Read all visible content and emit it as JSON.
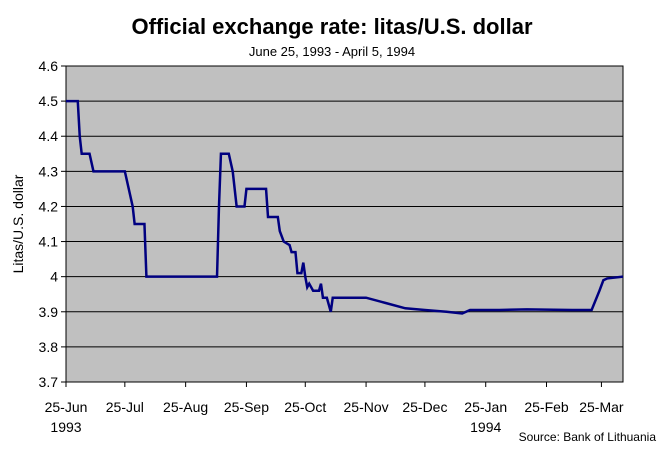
{
  "chart_data": {
    "type": "line",
    "title": "Official exchange rate: litas/U.S. dollar",
    "subtitle": "June 25, 1993 - April 5, 1994",
    "xlabel": "",
    "ylabel": "Litas/U.S. dollar",
    "source": "Source: Bank of Lithuania",
    "ylim": [
      3.7,
      4.6
    ],
    "yticks": [
      3.7,
      3.8,
      3.9,
      4,
      4.1,
      4.2,
      4.3,
      4.4,
      4.5,
      4.6
    ],
    "xlim": [
      "1993-06-25",
      "1994-04-05"
    ],
    "xticks": [
      {
        "date": "1993-06-25",
        "label": "25-Jun",
        "sublabel": "1993"
      },
      {
        "date": "1993-07-25",
        "label": "25-Jul",
        "sublabel": ""
      },
      {
        "date": "1993-08-25",
        "label": "25-Aug",
        "sublabel": ""
      },
      {
        "date": "1993-09-25",
        "label": "25-Sep",
        "sublabel": ""
      },
      {
        "date": "1993-10-25",
        "label": "25-Oct",
        "sublabel": ""
      },
      {
        "date": "1993-11-25",
        "label": "25-Nov",
        "sublabel": ""
      },
      {
        "date": "1993-12-25",
        "label": "25-Dec",
        "sublabel": ""
      },
      {
        "date": "1994-01-25",
        "label": "25-Jan",
        "sublabel": "1994"
      },
      {
        "date": "1994-02-25",
        "label": "25-Feb",
        "sublabel": ""
      },
      {
        "date": "1994-03-25",
        "label": "25-Mar",
        "sublabel": ""
      }
    ],
    "grid": {
      "horizontal": true,
      "vertical": false
    },
    "legend": "none",
    "colors": {
      "line": "#000080",
      "plot_background": "#c0c0c0",
      "page_background": "#ffffff"
    },
    "series": [
      {
        "points": [
          [
            "1993-06-25",
            4.5
          ],
          [
            "1993-07-01",
            4.5
          ],
          [
            "1993-07-02",
            4.4
          ],
          [
            "1993-07-03",
            4.35
          ],
          [
            "1993-07-07",
            4.35
          ],
          [
            "1993-07-09",
            4.3
          ],
          [
            "1993-07-25",
            4.3
          ],
          [
            "1993-07-27",
            4.25
          ],
          [
            "1993-07-29",
            4.2
          ],
          [
            "1993-07-30",
            4.15
          ],
          [
            "1993-08-04",
            4.15
          ],
          [
            "1993-08-05",
            4.0
          ],
          [
            "1993-09-10",
            4.0
          ],
          [
            "1993-09-11",
            4.2
          ],
          [
            "1993-09-12",
            4.35
          ],
          [
            "1993-09-16",
            4.35
          ],
          [
            "1993-09-18",
            4.3
          ],
          [
            "1993-09-20",
            4.2
          ],
          [
            "1993-09-24",
            4.2
          ],
          [
            "1993-09-25",
            4.25
          ],
          [
            "1993-10-05",
            4.25
          ],
          [
            "1993-10-06",
            4.17
          ],
          [
            "1993-10-11",
            4.17
          ],
          [
            "1993-10-12",
            4.13
          ],
          [
            "1993-10-14",
            4.1
          ],
          [
            "1993-10-17",
            4.09
          ],
          [
            "1993-10-18",
            4.07
          ],
          [
            "1993-10-20",
            4.07
          ],
          [
            "1993-10-21",
            4.01
          ],
          [
            "1993-10-23",
            4.01
          ],
          [
            "1993-10-24",
            4.04
          ],
          [
            "1993-10-25",
            4.0
          ],
          [
            "1993-10-26",
            3.97
          ],
          [
            "1993-10-27",
            3.98
          ],
          [
            "1993-10-29",
            3.96
          ],
          [
            "1993-11-01",
            3.96
          ],
          [
            "1993-11-02",
            3.98
          ],
          [
            "1993-11-03",
            3.94
          ],
          [
            "1993-11-05",
            3.94
          ],
          [
            "1993-11-07",
            3.9
          ],
          [
            "1993-11-08",
            3.94
          ],
          [
            "1993-11-25",
            3.94
          ],
          [
            "1993-12-05",
            3.925
          ],
          [
            "1993-12-15",
            3.91
          ],
          [
            "1993-12-25",
            3.905
          ],
          [
            "1994-01-05",
            3.9
          ],
          [
            "1994-01-13",
            3.895
          ],
          [
            "1994-01-17",
            3.905
          ],
          [
            "1994-02-01",
            3.905
          ],
          [
            "1994-02-15",
            3.907
          ],
          [
            "1994-03-10",
            3.905
          ],
          [
            "1994-03-20",
            3.905
          ],
          [
            "1994-03-24",
            3.96
          ],
          [
            "1994-03-26",
            3.99
          ],
          [
            "1994-03-28",
            3.995
          ],
          [
            "1994-04-05",
            4.0
          ]
        ]
      }
    ]
  }
}
